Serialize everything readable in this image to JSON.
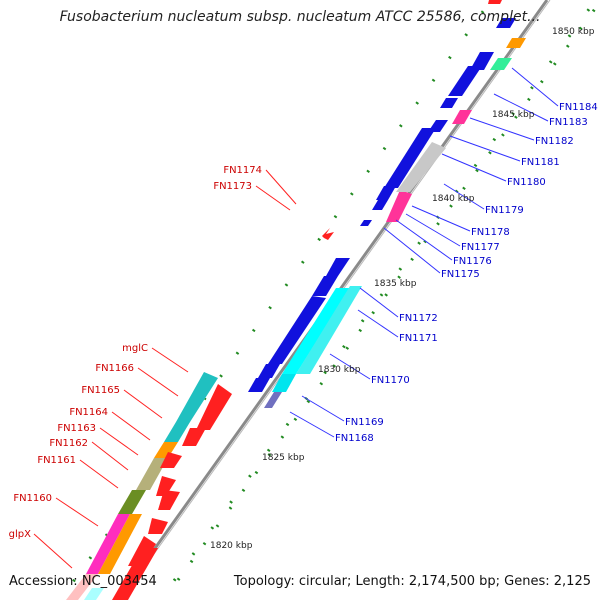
{
  "title": "Fusobacterium nucleatum subsp. nucleatum ATCC 25586, complet...",
  "footer": {
    "accession": "Accession: NC_003454",
    "topology": "Topology: circular; Length: 2,174,500 bp; Genes: 2,125"
  },
  "colors": {
    "backbone": "#888888",
    "tick": "#228b22",
    "label_blue": "#0000cc",
    "label_red": "#cc0000",
    "leader_blue": "#3333ff",
    "leader_red": "#ff2222"
  },
  "scale_labels": [
    {
      "kbp": 1820,
      "text": "1820 kbp"
    },
    {
      "kbp": 1825,
      "text": "1825 kbp"
    },
    {
      "kbp": 1830,
      "text": "1830 kbp"
    },
    {
      "kbp": 1835,
      "text": "1835 kbp"
    },
    {
      "kbp": 1840,
      "text": "1840 kbp"
    },
    {
      "kbp": 1845,
      "text": "1845 kbp"
    },
    {
      "kbp": 1850,
      "text": "1850 kbp"
    }
  ],
  "gene_labels_forward": [
    "FN1184",
    "FN1183",
    "FN1182",
    "FN1181",
    "FN1180",
    "FN1179",
    "FN1178",
    "FN1177",
    "FN1176",
    "FN1175",
    "FN1172",
    "FN1171",
    "FN1170",
    "FN1169",
    "FN1168"
  ],
  "gene_labels_reverse": [
    "FN1174",
    "FN1173",
    "mglC",
    "FN1166",
    "FN1165",
    "FN1164",
    "FN1163",
    "FN1162",
    "FN1161",
    "FN1160",
    "glpX"
  ]
}
